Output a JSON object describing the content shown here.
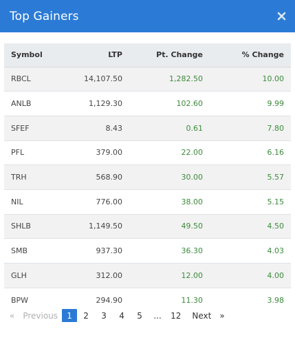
{
  "modal": {
    "title": "Top Gainers",
    "close_icon": "close-icon"
  },
  "table": {
    "headers": [
      "Symbol",
      "LTP",
      "Pt. Change",
      "% Change"
    ],
    "rows": [
      [
        "RBCL",
        "14,107.50",
        "1,282.50",
        "10.00"
      ],
      [
        "ANLB",
        "1,129.30",
        "102.60",
        "9.99"
      ],
      [
        "SFEF",
        "8.43",
        "0.61",
        "7.80"
      ],
      [
        "PFL",
        "379.00",
        "22.00",
        "6.16"
      ],
      [
        "TRH",
        "568.90",
        "30.00",
        "5.57"
      ],
      [
        "NIL",
        "776.00",
        "38.00",
        "5.15"
      ],
      [
        "SHLB",
        "1,149.50",
        "49.50",
        "4.50"
      ],
      [
        "SMB",
        "937.30",
        "36.30",
        "4.03"
      ],
      [
        "GLH",
        "312.00",
        "12.00",
        "4.00"
      ],
      [
        "BPW",
        "294.90",
        "11.30",
        "3.98"
      ]
    ]
  },
  "pagination": {
    "first": "«",
    "previous": "Previous",
    "pages": [
      "1",
      "2",
      "3",
      "4",
      "5",
      "...",
      "12"
    ],
    "current": "1",
    "next": "Next",
    "last": "»"
  },
  "colors": {
    "header_bg": "#2b7bd6",
    "positive": "#3c8a3c",
    "active_page": "#2b7bd6"
  }
}
